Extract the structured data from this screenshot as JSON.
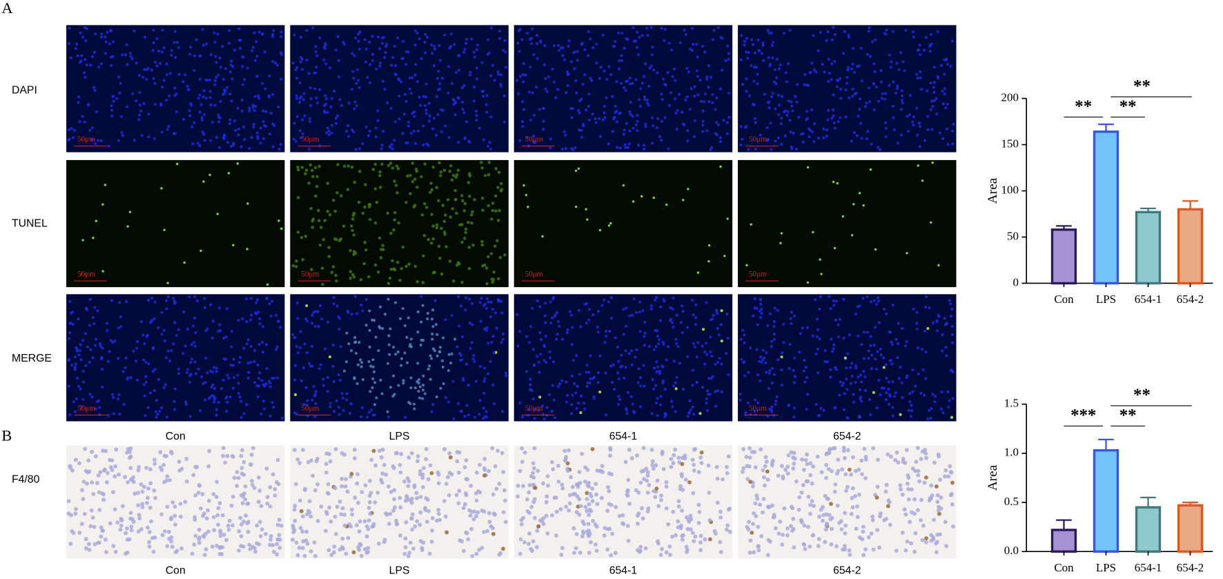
{
  "figure": {
    "panel_labels": [
      "A",
      "B"
    ],
    "rows": [
      "DAPI",
      "TUNEL",
      "MERGE",
      "F4/80"
    ],
    "columns": [
      "Con",
      "LPS",
      "654-1",
      "654-2"
    ],
    "scale_bar": "50μm"
  },
  "chart_data": [
    {
      "type": "bar",
      "ylabel": "Area",
      "categories": [
        "Con",
        "LPS",
        "654-1",
        "654-2"
      ],
      "values": [
        58,
        164,
        77,
        80
      ],
      "errors": [
        4,
        8,
        4,
        9
      ],
      "colors": [
        "#a791d4",
        "#72c3f7",
        "#8fc9cd",
        "#eaa985"
      ],
      "edge_colors": [
        "#2b1b5c",
        "#3856e6",
        "#3b7b80",
        "#e4561c"
      ],
      "ylim": [
        0,
        200
      ],
      "yticks": [
        0,
        50,
        100,
        150,
        200
      ],
      "significance": [
        {
          "label": "**",
          "between": [
            "Con",
            "LPS"
          ]
        },
        {
          "label": "**",
          "between": [
            "LPS",
            "654-1"
          ]
        },
        {
          "label": "**",
          "between": [
            "LPS",
            "654-2"
          ]
        }
      ]
    },
    {
      "type": "bar",
      "ylabel": "Area",
      "categories": [
        "Con",
        "LPS",
        "654-1",
        "654-2"
      ],
      "values": [
        0.22,
        1.03,
        0.45,
        0.47
      ],
      "errors": [
        0.1,
        0.11,
        0.1,
        0.03
      ],
      "colors": [
        "#a791d4",
        "#72c3f7",
        "#8fc9cd",
        "#eaa985"
      ],
      "edge_colors": [
        "#2b1b5c",
        "#3856e6",
        "#3b7b80",
        "#e4561c"
      ],
      "ylim": [
        0,
        1.5
      ],
      "yticks": [
        {
          "value": 0,
          "label": "0.0"
        },
        {
          "value": 0.5,
          "label": "0.5"
        },
        {
          "value": 1,
          "label": "1.0"
        },
        {
          "value": 1.5,
          "label": "1.5"
        }
      ],
      "significance": [
        {
          "label": "***",
          "between": [
            "Con",
            "LPS"
          ]
        },
        {
          "label": "**",
          "between": [
            "LPS",
            "654-1"
          ]
        },
        {
          "label": "**",
          "between": [
            "LPS",
            "654-2"
          ]
        }
      ]
    }
  ]
}
